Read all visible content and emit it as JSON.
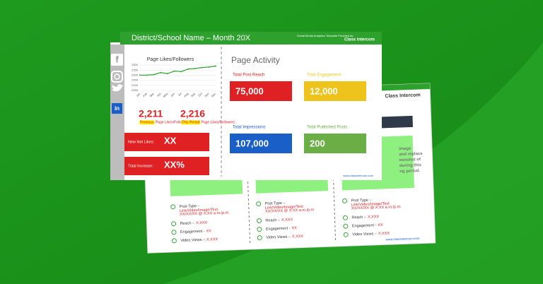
{
  "header": {
    "title": "District/School Name – Month 20X",
    "provider": "Social Media Analytics Template Provided by",
    "brand": "Class Intercom"
  },
  "chart_data": {
    "type": "line",
    "title": "Page Likes/Followers",
    "categories": [
      "Jan",
      "Feb",
      "Mar",
      "Apr",
      "May",
      "Jun",
      "Jul",
      "Aug",
      "Sep",
      "Oct",
      "Nov",
      "Dec"
    ],
    "values": [
      2200,
      2200,
      2205,
      2225,
      2215,
      2240,
      2235,
      2260,
      2265,
      2275,
      2280,
      2290
    ],
    "color": "#3aa63a",
    "ylim": [
      2050,
      2300
    ],
    "yticks": [
      2050,
      2100,
      2150,
      2200,
      2250,
      2300
    ],
    "grid": true
  },
  "likes": [
    {
      "value": "2,211",
      "highlight": "Previous",
      "label": "Page Likes/Followers"
    },
    {
      "value": "2,216",
      "highlight": "This Period",
      "label": "Page Likes/Followers"
    }
  ],
  "summary": [
    {
      "label": "New Net Likes:",
      "value": "XX"
    },
    {
      "label": "Total Increase:",
      "value": "XX%"
    }
  ],
  "activity": {
    "title": "Page Activity",
    "metrics": [
      {
        "label": "Total Post Reach",
        "value": "75,000",
        "color": "#e02124"
      },
      {
        "label": "Total Engagement",
        "value": "12,000",
        "color": "#eec31c"
      },
      {
        "label": "Total Impressions",
        "value": "107,000",
        "color": "#1a5fc8"
      },
      {
        "label": "Total Published Posts",
        "value": "200",
        "color": "#6aae45"
      }
    ]
  },
  "footer_url": "www.classintercom.com",
  "back": {
    "brand": "Class Intercom",
    "note_lines": [
      "image",
      "and replace",
      "eenshot of",
      "during this",
      "ng period."
    ],
    "posts": [
      {
        "type_label": "Post Type –",
        "type_value": "Link/Video/Image/Text",
        "date": "XX/XX/XX @ X:XX a.m./p.m.",
        "reach_label": "Reach –",
        "reach_value": "X,XXX",
        "engagement_label": "Engagement -",
        "engagement_value": "XX",
        "views_label": "Video Views –",
        "views_value": "X,XXX"
      },
      {
        "type_label": "Post Type –",
        "type_value": "Link/Video/Image/Text",
        "date": "XX/XX/XX @ X:XX a.m./p.m.",
        "reach_label": "Reach –",
        "reach_value": "X,XXX",
        "engagement_label": "Engagement -",
        "engagement_value": "XX",
        "views_label": "Video Views –",
        "views_value": "X,XXX"
      },
      {
        "type_label": "Post Type –",
        "type_value": "Link/Video/Image/Text",
        "date": "XX/XX/XX @ X:XX a.m./p.m.",
        "reach_label": "Reach –",
        "reach_value": "X,XXX",
        "engagement_label": "Engagement -",
        "engagement_value": "XX",
        "views_label": "Video Views –",
        "views_value": "X,XXX"
      }
    ],
    "footer_url": "www.classintercom.com"
  }
}
